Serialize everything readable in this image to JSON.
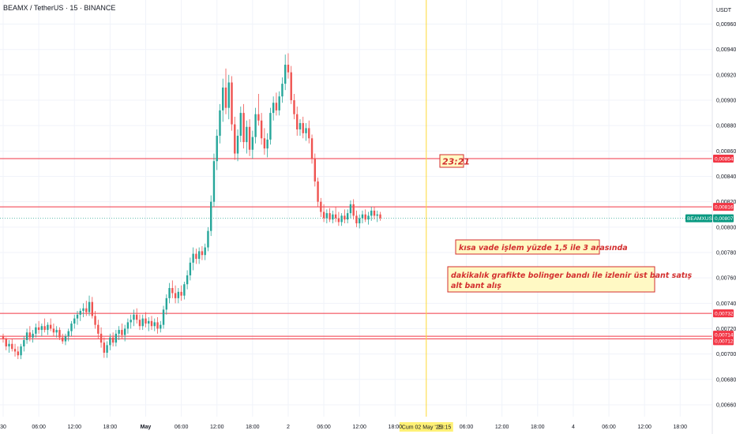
{
  "header": {
    "symbol_title": "BEAMX / TetherUS · 15 · BINANCE",
    "currency": "USDT"
  },
  "colors": {
    "up": "#26a69a",
    "down": "#ef5350",
    "level_line": "#f23645",
    "cursor_line": "#fdd835",
    "last_price": "#089981",
    "note_border": "#d32f2f",
    "note_fill": "#fff9c4"
  },
  "annotations": {
    "time_label": "23:21",
    "note_short_term": "kısa vade işlem yüzde 1,5 ile 3 arasında",
    "note_bollinger_line1": "dakikalık grafikte bolinger bandı ile izlenir üst bant satış",
    "note_bollinger_line2": "alt bant alış",
    "cursor_date": "Cum 02 May '25",
    "cursor_time": "23:15"
  },
  "last_price": {
    "symbol": "BEAMXUSDT",
    "value": "0,00807"
  },
  "chart_data": {
    "type": "candlestick",
    "title": "BEAMX / TetherUS · 15 · BINANCE",
    "ylabel": "USDT",
    "ylim": [
      0.00655,
      0.00965
    ],
    "y_ticks": [
      "0,00960",
      "0,00940",
      "0,00920",
      "0,00900",
      "0,00880",
      "0,00860",
      "0,00840",
      "0,00820",
      "0,00800",
      "0,00780",
      "0,00760",
      "0,00740",
      "0,00720",
      "0,00700",
      "0,00680",
      "0,00660"
    ],
    "y_tick_values": [
      0.0096,
      0.0094,
      0.0092,
      0.009,
      0.0088,
      0.0086,
      0.0084,
      0.0082,
      0.008,
      0.0078,
      0.0076,
      0.0074,
      0.0072,
      0.007,
      0.0068,
      0.0066
    ],
    "x_tick_labels": [
      "30",
      "06:00",
      "12:00",
      "18:00",
      "May",
      "06:00",
      "12:00",
      "18:00",
      "2",
      "06:00",
      "12:00",
      "18:00",
      "06:00",
      "12:00",
      "18:00",
      "4",
      "06:00",
      "12:00",
      "18:00"
    ],
    "x_tick_hours": [
      0,
      6,
      12,
      18,
      24,
      30,
      36,
      42,
      48,
      54,
      60,
      66,
      78,
      84,
      90,
      96,
      102,
      108,
      114
    ],
    "x_range_hours": [
      0,
      117
    ],
    "grid": true,
    "horizontal_levels": [
      {
        "label": "0,00854",
        "value": 0.00854
      },
      {
        "label": "0,00816",
        "value": 0.00816
      },
      {
        "label": "0,00732",
        "value": 0.00732
      },
      {
        "label": "0,00714",
        "value": 0.00714
      },
      {
        "label": "0,00712",
        "value": 0.00712
      }
    ],
    "last_price_value": 0.00807,
    "cursor_hour": 71.25,
    "series": [
      {
        "hour": 0.0,
        "o": 0.00714,
        "h": 0.00716,
        "l": 0.00709,
        "c": 0.00712
      },
      {
        "hour": 0.5,
        "o": 0.00712,
        "h": 0.00713,
        "l": 0.00703,
        "c": 0.00706
      },
      {
        "hour": 1.0,
        "o": 0.00706,
        "h": 0.00711,
        "l": 0.00701,
        "c": 0.00708
      },
      {
        "hour": 1.5,
        "o": 0.00708,
        "h": 0.00712,
        "l": 0.00702,
        "c": 0.00704
      },
      {
        "hour": 2.0,
        "o": 0.00704,
        "h": 0.00708,
        "l": 0.00698,
        "c": 0.00702
      },
      {
        "hour": 2.5,
        "o": 0.00702,
        "h": 0.00706,
        "l": 0.00696,
        "c": 0.00699
      },
      {
        "hour": 3.0,
        "o": 0.00699,
        "h": 0.00708,
        "l": 0.00696,
        "c": 0.00706
      },
      {
        "hour": 3.5,
        "o": 0.00706,
        "h": 0.00714,
        "l": 0.00702,
        "c": 0.00711
      },
      {
        "hour": 4.0,
        "o": 0.00711,
        "h": 0.0072,
        "l": 0.00708,
        "c": 0.00717
      },
      {
        "hour": 4.5,
        "o": 0.00717,
        "h": 0.00722,
        "l": 0.0071,
        "c": 0.00713
      },
      {
        "hour": 5.0,
        "o": 0.00713,
        "h": 0.00719,
        "l": 0.00709,
        "c": 0.00716
      },
      {
        "hour": 5.5,
        "o": 0.00716,
        "h": 0.00724,
        "l": 0.00713,
        "c": 0.00721
      },
      {
        "hour": 6.0,
        "o": 0.00721,
        "h": 0.00726,
        "l": 0.00716,
        "c": 0.00719
      },
      {
        "hour": 6.5,
        "o": 0.00719,
        "h": 0.00724,
        "l": 0.00714,
        "c": 0.00722
      },
      {
        "hour": 7.0,
        "o": 0.00722,
        "h": 0.00728,
        "l": 0.00717,
        "c": 0.00719
      },
      {
        "hour": 7.5,
        "o": 0.00719,
        "h": 0.00725,
        "l": 0.00715,
        "c": 0.00723
      },
      {
        "hour": 8.0,
        "o": 0.00723,
        "h": 0.00728,
        "l": 0.00718,
        "c": 0.0072
      },
      {
        "hour": 8.5,
        "o": 0.0072,
        "h": 0.00724,
        "l": 0.00714,
        "c": 0.00717
      },
      {
        "hour": 9.0,
        "o": 0.00717,
        "h": 0.00722,
        "l": 0.00713,
        "c": 0.00719
      },
      {
        "hour": 9.5,
        "o": 0.00719,
        "h": 0.00721,
        "l": 0.00711,
        "c": 0.00713
      },
      {
        "hour": 10.0,
        "o": 0.00713,
        "h": 0.00716,
        "l": 0.00708,
        "c": 0.0071
      },
      {
        "hour": 10.5,
        "o": 0.0071,
        "h": 0.00716,
        "l": 0.00707,
        "c": 0.00714
      },
      {
        "hour": 11.0,
        "o": 0.00714,
        "h": 0.0072,
        "l": 0.0071,
        "c": 0.00718
      },
      {
        "hour": 11.5,
        "o": 0.00718,
        "h": 0.00726,
        "l": 0.00714,
        "c": 0.00724
      },
      {
        "hour": 12.0,
        "o": 0.00724,
        "h": 0.00731,
        "l": 0.0072,
        "c": 0.00728
      },
      {
        "hour": 12.5,
        "o": 0.00728,
        "h": 0.00734,
        "l": 0.00723,
        "c": 0.00731
      },
      {
        "hour": 13.0,
        "o": 0.00731,
        "h": 0.00736,
        "l": 0.00726,
        "c": 0.00734
      },
      {
        "hour": 13.5,
        "o": 0.00734,
        "h": 0.0074,
        "l": 0.00729,
        "c": 0.00736
      },
      {
        "hour": 14.0,
        "o": 0.00736,
        "h": 0.00742,
        "l": 0.0073,
        "c": 0.00733
      },
      {
        "hour": 14.5,
        "o": 0.00733,
        "h": 0.00746,
        "l": 0.0073,
        "c": 0.00741
      },
      {
        "hour": 15.0,
        "o": 0.00741,
        "h": 0.00745,
        "l": 0.00728,
        "c": 0.0073
      },
      {
        "hour": 15.5,
        "o": 0.0073,
        "h": 0.00734,
        "l": 0.0072,
        "c": 0.00723
      },
      {
        "hour": 16.0,
        "o": 0.00723,
        "h": 0.00727,
        "l": 0.00712,
        "c": 0.00716
      },
      {
        "hour": 16.5,
        "o": 0.00716,
        "h": 0.00721,
        "l": 0.00705,
        "c": 0.00709
      },
      {
        "hour": 17.0,
        "o": 0.00709,
        "h": 0.00713,
        "l": 0.00697,
        "c": 0.00701
      },
      {
        "hour": 17.5,
        "o": 0.00701,
        "h": 0.0071,
        "l": 0.00697,
        "c": 0.00707
      },
      {
        "hour": 18.0,
        "o": 0.00707,
        "h": 0.00716,
        "l": 0.00703,
        "c": 0.00713
      },
      {
        "hour": 18.5,
        "o": 0.00713,
        "h": 0.00717,
        "l": 0.00706,
        "c": 0.00709
      },
      {
        "hour": 19.0,
        "o": 0.00709,
        "h": 0.00719,
        "l": 0.00706,
        "c": 0.00716
      },
      {
        "hour": 19.5,
        "o": 0.00716,
        "h": 0.00722,
        "l": 0.00711,
        "c": 0.00719
      },
      {
        "hour": 20.0,
        "o": 0.00719,
        "h": 0.00724,
        "l": 0.00712,
        "c": 0.00715
      },
      {
        "hour": 20.5,
        "o": 0.00715,
        "h": 0.00723,
        "l": 0.0071,
        "c": 0.0072
      },
      {
        "hour": 21.0,
        "o": 0.0072,
        "h": 0.00728,
        "l": 0.00716,
        "c": 0.00725
      },
      {
        "hour": 21.5,
        "o": 0.00725,
        "h": 0.00731,
        "l": 0.0072,
        "c": 0.00727
      },
      {
        "hour": 22.0,
        "o": 0.00727,
        "h": 0.00735,
        "l": 0.00722,
        "c": 0.00731
      },
      {
        "hour": 22.5,
        "o": 0.00731,
        "h": 0.00736,
        "l": 0.00724,
        "c": 0.00727
      },
      {
        "hour": 23.0,
        "o": 0.00727,
        "h": 0.00731,
        "l": 0.00719,
        "c": 0.00722
      },
      {
        "hour": 23.5,
        "o": 0.00722,
        "h": 0.00731,
        "l": 0.00719,
        "c": 0.00728
      },
      {
        "hour": 24.0,
        "o": 0.00728,
        "h": 0.00733,
        "l": 0.00721,
        "c": 0.00724
      },
      {
        "hour": 24.5,
        "o": 0.00724,
        "h": 0.00729,
        "l": 0.00718,
        "c": 0.00726
      },
      {
        "hour": 25.0,
        "o": 0.00726,
        "h": 0.0073,
        "l": 0.00719,
        "c": 0.00722
      },
      {
        "hour": 25.5,
        "o": 0.00722,
        "h": 0.00728,
        "l": 0.00718,
        "c": 0.00725
      },
      {
        "hour": 26.0,
        "o": 0.00725,
        "h": 0.00729,
        "l": 0.00716,
        "c": 0.0072
      },
      {
        "hour": 26.5,
        "o": 0.0072,
        "h": 0.00726,
        "l": 0.00717,
        "c": 0.00723
      },
      {
        "hour": 27.0,
        "o": 0.00723,
        "h": 0.00738,
        "l": 0.0072,
        "c": 0.00735
      },
      {
        "hour": 27.5,
        "o": 0.00735,
        "h": 0.00747,
        "l": 0.00731,
        "c": 0.00744
      },
      {
        "hour": 28.0,
        "o": 0.00744,
        "h": 0.00756,
        "l": 0.0074,
        "c": 0.00752
      },
      {
        "hour": 28.5,
        "o": 0.00752,
        "h": 0.00758,
        "l": 0.00744,
        "c": 0.00748
      },
      {
        "hour": 29.0,
        "o": 0.00748,
        "h": 0.00754,
        "l": 0.0074,
        "c": 0.00744
      },
      {
        "hour": 29.5,
        "o": 0.00744,
        "h": 0.00752,
        "l": 0.0074,
        "c": 0.00749
      },
      {
        "hour": 30.0,
        "o": 0.00749,
        "h": 0.00754,
        "l": 0.00742,
        "c": 0.00746
      },
      {
        "hour": 30.5,
        "o": 0.00746,
        "h": 0.00757,
        "l": 0.00743,
        "c": 0.00755
      },
      {
        "hour": 31.0,
        "o": 0.00755,
        "h": 0.00766,
        "l": 0.00751,
        "c": 0.00762
      },
      {
        "hour": 31.5,
        "o": 0.00762,
        "h": 0.00776,
        "l": 0.00758,
        "c": 0.00772
      },
      {
        "hour": 32.0,
        "o": 0.00772,
        "h": 0.00784,
        "l": 0.00766,
        "c": 0.00779
      },
      {
        "hour": 32.5,
        "o": 0.00779,
        "h": 0.00783,
        "l": 0.00771,
        "c": 0.00775
      },
      {
        "hour": 33.0,
        "o": 0.00775,
        "h": 0.00784,
        "l": 0.00771,
        "c": 0.00781
      },
      {
        "hour": 33.5,
        "o": 0.00781,
        "h": 0.00785,
        "l": 0.00774,
        "c": 0.00778
      },
      {
        "hour": 34.0,
        "o": 0.00778,
        "h": 0.00787,
        "l": 0.00774,
        "c": 0.00784
      },
      {
        "hour": 34.5,
        "o": 0.00784,
        "h": 0.008,
        "l": 0.00781,
        "c": 0.00797
      },
      {
        "hour": 35.0,
        "o": 0.00797,
        "h": 0.00825,
        "l": 0.00793,
        "c": 0.0082
      },
      {
        "hour": 35.5,
        "o": 0.0082,
        "h": 0.00858,
        "l": 0.00816,
        "c": 0.00852
      },
      {
        "hour": 36.0,
        "o": 0.00852,
        "h": 0.00877,
        "l": 0.00845,
        "c": 0.00872
      },
      {
        "hour": 36.5,
        "o": 0.00872,
        "h": 0.00897,
        "l": 0.00866,
        "c": 0.00892
      },
      {
        "hour": 37.0,
        "o": 0.00892,
        "h": 0.00917,
        "l": 0.00883,
        "c": 0.0091
      },
      {
        "hour": 37.5,
        "o": 0.0091,
        "h": 0.00925,
        "l": 0.00889,
        "c": 0.00894
      },
      {
        "hour": 38.0,
        "o": 0.00894,
        "h": 0.0092,
        "l": 0.00885,
        "c": 0.00914
      },
      {
        "hour": 38.5,
        "o": 0.00914,
        "h": 0.00919,
        "l": 0.00876,
        "c": 0.00881
      },
      {
        "hour": 39.0,
        "o": 0.00881,
        "h": 0.00887,
        "l": 0.00853,
        "c": 0.00858
      },
      {
        "hour": 39.5,
        "o": 0.00858,
        "h": 0.00877,
        "l": 0.00852,
        "c": 0.00872
      },
      {
        "hour": 40.0,
        "o": 0.00872,
        "h": 0.00895,
        "l": 0.00867,
        "c": 0.0089
      },
      {
        "hour": 40.5,
        "o": 0.0089,
        "h": 0.00897,
        "l": 0.00862,
        "c": 0.00867
      },
      {
        "hour": 41.0,
        "o": 0.00867,
        "h": 0.00884,
        "l": 0.00858,
        "c": 0.00879
      },
      {
        "hour": 41.5,
        "o": 0.00879,
        "h": 0.00885,
        "l": 0.00856,
        "c": 0.00861
      },
      {
        "hour": 42.0,
        "o": 0.00861,
        "h": 0.00876,
        "l": 0.00854,
        "c": 0.00871
      },
      {
        "hour": 42.5,
        "o": 0.00871,
        "h": 0.00894,
        "l": 0.00866,
        "c": 0.00889
      },
      {
        "hour": 43.0,
        "o": 0.00889,
        "h": 0.00905,
        "l": 0.0088,
        "c": 0.00884
      },
      {
        "hour": 43.5,
        "o": 0.00884,
        "h": 0.0089,
        "l": 0.00865,
        "c": 0.0087
      },
      {
        "hour": 44.0,
        "o": 0.0087,
        "h": 0.00878,
        "l": 0.00857,
        "c": 0.00862
      },
      {
        "hour": 44.5,
        "o": 0.00862,
        "h": 0.00874,
        "l": 0.00855,
        "c": 0.00869
      },
      {
        "hour": 45.0,
        "o": 0.00869,
        "h": 0.00894,
        "l": 0.00865,
        "c": 0.0089
      },
      {
        "hour": 45.5,
        "o": 0.0089,
        "h": 0.00903,
        "l": 0.00884,
        "c": 0.00898
      },
      {
        "hour": 46.0,
        "o": 0.00898,
        "h": 0.00906,
        "l": 0.00888,
        "c": 0.00892
      },
      {
        "hour": 46.5,
        "o": 0.00892,
        "h": 0.00907,
        "l": 0.00888,
        "c": 0.00903
      },
      {
        "hour": 47.0,
        "o": 0.00903,
        "h": 0.00918,
        "l": 0.00898,
        "c": 0.00913
      },
      {
        "hour": 47.5,
        "o": 0.00913,
        "h": 0.00936,
        "l": 0.00908,
        "c": 0.00928
      },
      {
        "hour": 48.0,
        "o": 0.00928,
        "h": 0.00937,
        "l": 0.00917,
        "c": 0.00922
      },
      {
        "hour": 48.5,
        "o": 0.00922,
        "h": 0.00927,
        "l": 0.00897,
        "c": 0.009
      },
      {
        "hour": 49.0,
        "o": 0.009,
        "h": 0.00905,
        "l": 0.00885,
        "c": 0.00889
      },
      {
        "hour": 49.5,
        "o": 0.00889,
        "h": 0.00895,
        "l": 0.00872,
        "c": 0.00877
      },
      {
        "hour": 50.0,
        "o": 0.00877,
        "h": 0.00885,
        "l": 0.00872,
        "c": 0.00882
      },
      {
        "hour": 50.5,
        "o": 0.00882,
        "h": 0.00887,
        "l": 0.0087,
        "c": 0.00874
      },
      {
        "hour": 51.0,
        "o": 0.00874,
        "h": 0.00882,
        "l": 0.00868,
        "c": 0.00878
      },
      {
        "hour": 51.5,
        "o": 0.00878,
        "h": 0.00884,
        "l": 0.00866,
        "c": 0.0087
      },
      {
        "hour": 52.0,
        "o": 0.0087,
        "h": 0.00873,
        "l": 0.0085,
        "c": 0.00854
      },
      {
        "hour": 52.5,
        "o": 0.00854,
        "h": 0.00858,
        "l": 0.00832,
        "c": 0.00836
      },
      {
        "hour": 53.0,
        "o": 0.00836,
        "h": 0.00839,
        "l": 0.00816,
        "c": 0.0082
      },
      {
        "hour": 53.5,
        "o": 0.0082,
        "h": 0.00823,
        "l": 0.00808,
        "c": 0.00812
      },
      {
        "hour": 54.0,
        "o": 0.00812,
        "h": 0.00818,
        "l": 0.00804,
        "c": 0.00807
      },
      {
        "hour": 54.5,
        "o": 0.00807,
        "h": 0.00814,
        "l": 0.00803,
        "c": 0.00811
      },
      {
        "hour": 55.0,
        "o": 0.00811,
        "h": 0.00815,
        "l": 0.00804,
        "c": 0.00806
      },
      {
        "hour": 55.5,
        "o": 0.00806,
        "h": 0.00813,
        "l": 0.00803,
        "c": 0.0081
      },
      {
        "hour": 56.0,
        "o": 0.0081,
        "h": 0.00816,
        "l": 0.00804,
        "c": 0.00807
      },
      {
        "hour": 56.5,
        "o": 0.00807,
        "h": 0.00812,
        "l": 0.00801,
        "c": 0.00804
      },
      {
        "hour": 57.0,
        "o": 0.00804,
        "h": 0.00811,
        "l": 0.00801,
        "c": 0.00809
      },
      {
        "hour": 57.5,
        "o": 0.00809,
        "h": 0.00814,
        "l": 0.00803,
        "c": 0.00806
      },
      {
        "hour": 58.0,
        "o": 0.00806,
        "h": 0.00814,
        "l": 0.00803,
        "c": 0.00811
      },
      {
        "hour": 58.5,
        "o": 0.00811,
        "h": 0.00821,
        "l": 0.00807,
        "c": 0.00818
      },
      {
        "hour": 59.0,
        "o": 0.00818,
        "h": 0.00822,
        "l": 0.00806,
        "c": 0.00809
      },
      {
        "hour": 59.5,
        "o": 0.00809,
        "h": 0.00813,
        "l": 0.008,
        "c": 0.00803
      },
      {
        "hour": 60.0,
        "o": 0.00803,
        "h": 0.0081,
        "l": 0.00799,
        "c": 0.00807
      },
      {
        "hour": 60.5,
        "o": 0.00807,
        "h": 0.00813,
        "l": 0.00803,
        "c": 0.0081
      },
      {
        "hour": 61.0,
        "o": 0.0081,
        "h": 0.00814,
        "l": 0.00804,
        "c": 0.00806
      },
      {
        "hour": 61.5,
        "o": 0.00806,
        "h": 0.00812,
        "l": 0.00802,
        "c": 0.00809
      },
      {
        "hour": 62.0,
        "o": 0.00809,
        "h": 0.00816,
        "l": 0.00805,
        "c": 0.00813
      },
      {
        "hour": 62.5,
        "o": 0.00813,
        "h": 0.00816,
        "l": 0.00806,
        "c": 0.00809
      },
      {
        "hour": 63.0,
        "o": 0.00809,
        "h": 0.00813,
        "l": 0.00804,
        "c": 0.0081
      },
      {
        "hour": 63.5,
        "o": 0.0081,
        "h": 0.00812,
        "l": 0.00805,
        "c": 0.00807
      }
    ]
  }
}
